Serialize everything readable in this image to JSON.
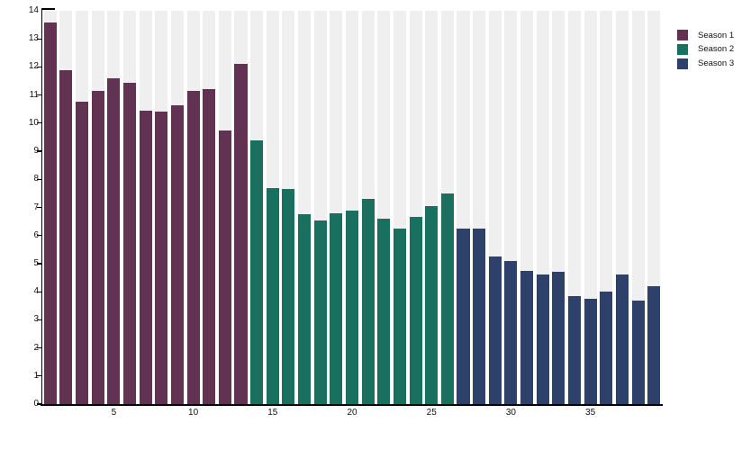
{
  "chart_data": {
    "type": "bar",
    "title": "",
    "xlabel": "",
    "ylabel": "",
    "n_bars": 39,
    "x_start": 1,
    "ylim": [
      0,
      14
    ],
    "yticks": [
      0,
      1,
      2,
      3,
      4,
      5,
      6,
      7,
      8,
      9,
      10,
      11,
      12,
      13,
      14
    ],
    "xticks": [
      5,
      10,
      15,
      20,
      25,
      30,
      35
    ],
    "grid": false,
    "legend_position": "top-right",
    "plot_background": "#ffffff",
    "slot_background": "#efefef",
    "axis_color": "#000000",
    "series": [
      {
        "name": "Season 1",
        "color": "#623253",
        "episodes": "1-13",
        "values": [
          13.6,
          11.9,
          10.75,
          11.15,
          11.6,
          11.45,
          10.45,
          10.4,
          10.65,
          11.15,
          11.2,
          9.75,
          12.1
        ]
      },
      {
        "name": "Season 2",
        "color": "#1a705e",
        "episodes": "14-26",
        "values": [
          9.4,
          7.7,
          7.65,
          6.75,
          6.55,
          6.8,
          6.9,
          7.3,
          6.6,
          6.25,
          6.65,
          7.05,
          7.5
        ]
      },
      {
        "name": "Season 3",
        "color": "#2d416b",
        "episodes": "27-39",
        "values": [
          6.25,
          6.25,
          5.25,
          5.1,
          4.75,
          4.6,
          4.7,
          3.85,
          3.75,
          4.0,
          4.6,
          3.7,
          4.2
        ]
      }
    ]
  },
  "legend": {
    "items": [
      {
        "label": "Season 1"
      },
      {
        "label": "Season 2"
      },
      {
        "label": "Season 3"
      }
    ]
  }
}
